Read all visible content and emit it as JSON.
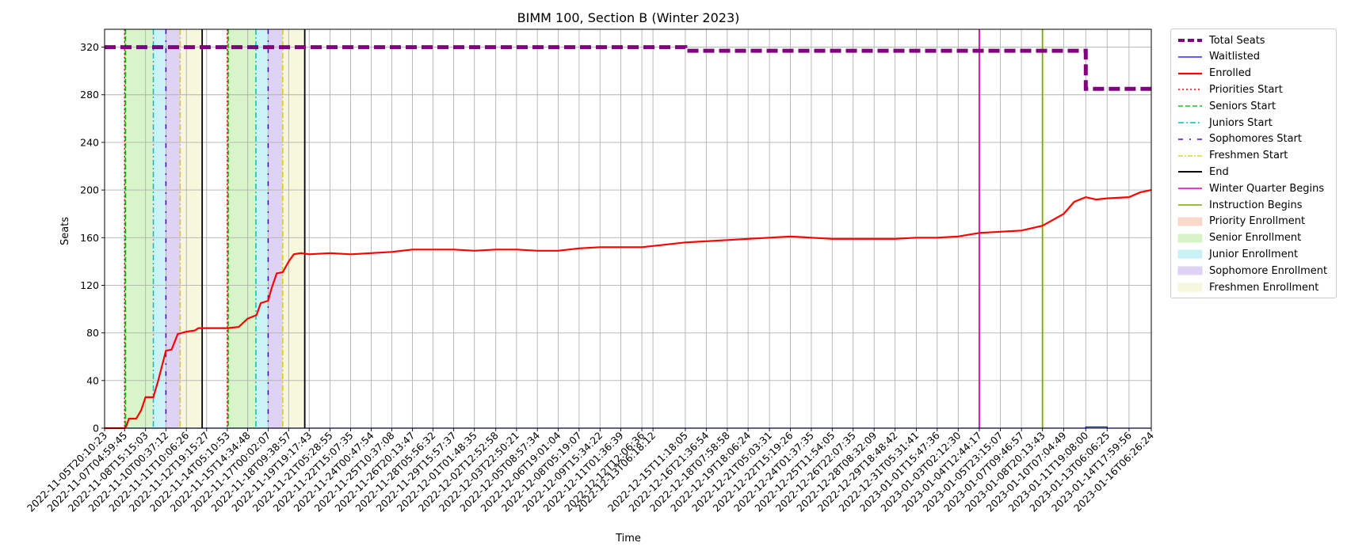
{
  "chart_data": {
    "type": "line",
    "title": "BIMM 100, Section B (Winter 2023)",
    "xlabel": "Time",
    "ylabel": "Seats",
    "ylim": [
      0,
      335
    ],
    "yticks": [
      0,
      40,
      80,
      120,
      160,
      200,
      240,
      280,
      320
    ],
    "grid": true,
    "legend_position": "outside-right",
    "x_range": [
      "2022-11-05T20:10:23",
      "2023-01-16T06:26:24"
    ],
    "x_tick_labels": [
      "2022-11-05T20:10:23",
      "2022-11-07T04:59:45",
      "2022-11-08T15:15:03",
      "2022-11-10T00:37:12",
      "2022-11-11T10:06:26",
      "2022-11-12T19:15:27",
      "2022-11-14T05:10:53",
      "2022-11-15T14:34:48",
      "2022-11-17T00:02:07",
      "2022-11-18T09:38:57",
      "2022-11-19T19:17:43",
      "2022-11-21T05:28:55",
      "2022-11-22T15:07:35",
      "2022-11-24T00:47:54",
      "2022-11-25T10:37:08",
      "2022-11-26T20:13:47",
      "2022-11-28T05:56:32",
      "2022-11-29T15:57:37",
      "2022-12-01T01:48:35",
      "2022-12-02T12:52:58",
      "2022-12-03T22:50:21",
      "2022-12-05T08:57:34",
      "2022-12-06T19:01:04",
      "2022-12-08T05:19:07",
      "2022-12-09T15:34:22",
      "2022-12-11T01:36:39",
      "2022-12-12T12:06:36",
      "2022-12-13T06:18:12",
      "2022-12-15T11:18:05",
      "2022-12-16T21:36:54",
      "2022-12-18T07:58:58",
      "2022-12-19T18:06:24",
      "2022-12-21T05:03:31",
      "2022-12-22T15:19:26",
      "2022-12-24T01:37:35",
      "2022-12-25T11:54:05",
      "2022-12-26T22:07:35",
      "2022-12-28T08:32:09",
      "2022-12-29T18:48:42",
      "2022-12-31T05:31:41",
      "2023-01-01T15:47:36",
      "2023-01-03T02:12:30",
      "2023-01-04T12:44:17",
      "2023-01-05T23:15:07",
      "2023-01-07T09:46:57",
      "2023-01-08T20:13:43",
      "2023-01-10T07:04:49",
      "2023-01-11T19:08:00",
      "2023-01-13T06:06:25",
      "2023-01-14T17:59:56",
      "2023-01-16T06:26:24"
    ],
    "series": [
      {
        "name": "Total Seats",
        "color": "#800080",
        "style": "dashed-thick",
        "points": [
          [
            "2022-11-05T20:10:23",
            320
          ],
          [
            "2022-12-15T11:18:05",
            320
          ],
          [
            "2022-12-15T11:18:05",
            317
          ],
          [
            "2023-01-11T19:08:00",
            317
          ],
          [
            "2023-01-11T19:08:00",
            285
          ],
          [
            "2023-01-16T06:26:24",
            285
          ]
        ]
      },
      {
        "name": "Waitlisted",
        "color": "#0000ff",
        "style": "solid-thin",
        "points": [
          [
            "2022-11-05T20:10:23",
            0
          ],
          [
            "2023-01-11T19:08:00",
            0
          ],
          [
            "2023-01-11T19:08:00",
            1
          ],
          [
            "2023-01-13T06:06:25",
            1
          ],
          [
            "2023-01-13T06:06:25",
            0
          ],
          [
            "2023-01-16T06:26:24",
            0
          ]
        ]
      },
      {
        "name": "Enrolled",
        "color": "#ff0000",
        "style": "solid",
        "points": [
          [
            "2022-11-05T20:10:23",
            0
          ],
          [
            "2022-11-07T04:59:45",
            0
          ],
          [
            "2022-11-07T08:00:00",
            2
          ],
          [
            "2022-11-07T12:00:00",
            8
          ],
          [
            "2022-11-08T00:00:00",
            8
          ],
          [
            "2022-11-08T08:00:00",
            15
          ],
          [
            "2022-11-08T15:15:03",
            26
          ],
          [
            "2022-11-09T04:00:00",
            26
          ],
          [
            "2022-11-09T12:00:00",
            40
          ],
          [
            "2022-11-10T00:37:12",
            65
          ],
          [
            "2022-11-10T10:00:00",
            66
          ],
          [
            "2022-11-10T20:00:00",
            79
          ],
          [
            "2022-11-11T10:06:26",
            81
          ],
          [
            "2022-11-12T00:00:00",
            82
          ],
          [
            "2022-11-12T06:00:00",
            84
          ],
          [
            "2022-11-13T00:00:00",
            84
          ],
          [
            "2022-11-14T05:10:53",
            84
          ],
          [
            "2022-11-15T00:00:00",
            85
          ],
          [
            "2022-11-15T14:34:48",
            92
          ],
          [
            "2022-11-16T05:00:00",
            95
          ],
          [
            "2022-11-16T12:00:00",
            105
          ],
          [
            "2022-11-17T00:02:07",
            107
          ],
          [
            "2022-11-17T06:00:00",
            118
          ],
          [
            "2022-11-17T14:00:00",
            130
          ],
          [
            "2022-11-18T00:00:00",
            131
          ],
          [
            "2022-11-18T09:38:57",
            140
          ],
          [
            "2022-11-18T18:00:00",
            146
          ],
          [
            "2022-11-19T06:00:00",
            147
          ],
          [
            "2022-11-19T19:17:43",
            146
          ],
          [
            "2022-11-21T05:28:55",
            147
          ],
          [
            "2022-11-22T15:07:35",
            146
          ],
          [
            "2022-11-24T00:47:54",
            147
          ],
          [
            "2022-11-25T10:37:08",
            148
          ],
          [
            "2022-11-26T20:13:47",
            150
          ],
          [
            "2022-11-28T05:56:32",
            150
          ],
          [
            "2022-11-29T15:57:37",
            150
          ],
          [
            "2022-12-01T01:48:35",
            149
          ],
          [
            "2022-12-02T12:52:58",
            150
          ],
          [
            "2022-12-03T22:50:21",
            150
          ],
          [
            "2022-12-05T08:57:34",
            149
          ],
          [
            "2022-12-06T19:01:04",
            149
          ],
          [
            "2022-12-08T05:19:07",
            151
          ],
          [
            "2022-12-09T15:34:22",
            152
          ],
          [
            "2022-12-11T01:36:39",
            152
          ],
          [
            "2022-12-12T12:06:36",
            152
          ],
          [
            "2022-12-13T06:18:12",
            153
          ],
          [
            "2022-12-15T11:18:05",
            156
          ],
          [
            "2022-12-16T21:36:54",
            157
          ],
          [
            "2022-12-18T07:58:58",
            158
          ],
          [
            "2022-12-19T18:06:24",
            159
          ],
          [
            "2022-12-21T05:03:31",
            160
          ],
          [
            "2022-12-22T15:19:26",
            161
          ],
          [
            "2022-12-24T01:37:35",
            160
          ],
          [
            "2022-12-25T11:54:05",
            159
          ],
          [
            "2022-12-26T22:07:35",
            159
          ],
          [
            "2022-12-28T08:32:09",
            159
          ],
          [
            "2022-12-29T18:48:42",
            159
          ],
          [
            "2022-12-31T05:31:41",
            160
          ],
          [
            "2023-01-01T15:47:36",
            160
          ],
          [
            "2023-01-03T02:12:30",
            161
          ],
          [
            "2023-01-04T12:44:17",
            164
          ],
          [
            "2023-01-05T23:15:07",
            165
          ],
          [
            "2023-01-07T09:46:57",
            166
          ],
          [
            "2023-01-08T20:13:43",
            170
          ],
          [
            "2023-01-10T07:04:49",
            180
          ],
          [
            "2023-01-11T00:00:00",
            190
          ],
          [
            "2023-01-11T19:08:00",
            194
          ],
          [
            "2023-01-12T12:00:00",
            192
          ],
          [
            "2023-01-13T06:06:25",
            193
          ],
          [
            "2023-01-14T17:59:56",
            194
          ],
          [
            "2023-01-15T12:00:00",
            198
          ],
          [
            "2023-01-16T06:26:24",
            200
          ]
        ]
      }
    ],
    "markers": [
      {
        "name": "Priorities Start",
        "color": "#ff0000",
        "style": "dotted",
        "times": [
          "2022-11-07T04:59:45",
          "2022-11-14T05:10:53"
        ]
      },
      {
        "name": "Seniors Start",
        "color": "#00bb00",
        "style": "dashed",
        "times": [
          "2022-11-07T06:30:00",
          "2022-11-14T06:40:00"
        ]
      },
      {
        "name": "Juniors Start",
        "color": "#00bfbf",
        "style": "dashdot",
        "times": [
          "2022-11-09T04:00:00",
          "2022-11-16T04:00:00"
        ]
      },
      {
        "name": "Sophomores Start",
        "color": "#5500cc",
        "style": "dashdot-sparse",
        "times": [
          "2022-11-10T00:37:12",
          "2022-11-17T00:02:07"
        ]
      },
      {
        "name": "Freshmen Start",
        "color": "#ddcc00",
        "style": "dashdot",
        "times": [
          "2022-11-11T00:00:00",
          "2022-11-18T00:00:00"
        ]
      },
      {
        "name": "End",
        "color": "#000000",
        "style": "solid",
        "times": [
          "2022-11-12T12:00:00",
          "2022-11-19T12:00:00"
        ]
      },
      {
        "name": "Winter Quarter Begins",
        "color": "#dd00aa",
        "style": "solid",
        "times": [
          "2023-01-04T12:44:17"
        ]
      },
      {
        "name": "Instruction Begins",
        "color": "#77aa00",
        "style": "solid",
        "times": [
          "2023-01-08T20:13:43"
        ]
      }
    ],
    "shaded_periods": [
      {
        "name": "Priority Enrollment",
        "color": "#f4c0a8",
        "ranges": [
          [
            "2022-11-07T04:59:45",
            "2022-11-07T06:30:00"
          ],
          [
            "2022-11-14T05:10:53",
            "2022-11-14T06:40:00"
          ]
        ]
      },
      {
        "name": "Senior Enrollment",
        "color": "#bdeea4",
        "ranges": [
          [
            "2022-11-07T06:30:00",
            "2022-11-09T04:00:00"
          ],
          [
            "2022-11-14T06:40:00",
            "2022-11-16T04:00:00"
          ]
        ]
      },
      {
        "name": "Junior Enrollment",
        "color": "#a8e9ef",
        "ranges": [
          [
            "2022-11-09T04:00:00",
            "2022-11-10T00:37:12"
          ],
          [
            "2022-11-16T04:00:00",
            "2022-11-17T00:02:07"
          ]
        ]
      },
      {
        "name": "Sophomore Enrollment",
        "color": "#c9b6ee",
        "ranges": [
          [
            "2022-11-10T00:37:12",
            "2022-11-11T00:00:00"
          ],
          [
            "2022-11-17T00:02:07",
            "2022-11-18T00:00:00"
          ]
        ]
      },
      {
        "name": "Freshmen Enrollment",
        "color": "#f1f2c4",
        "ranges": [
          [
            "2022-11-11T00:00:00",
            "2022-11-12T12:00:00"
          ],
          [
            "2022-11-18T00:00:00",
            "2022-11-19T12:00:00"
          ]
        ]
      }
    ]
  },
  "legend": {
    "items": [
      {
        "label": "Total Seats",
        "kind": "line",
        "color": "#800080",
        "dash": "8,4",
        "width": 4
      },
      {
        "label": "Waitlisted",
        "kind": "line",
        "color": "#0000ff",
        "dash": "",
        "width": 1.2
      },
      {
        "label": "Enrolled",
        "kind": "line",
        "color": "#ff0000",
        "dash": "",
        "width": 2.2
      },
      {
        "label": "Priorities Start",
        "kind": "line",
        "color": "#ff0000",
        "dash": "2,3",
        "width": 1.4
      },
      {
        "label": "Seniors Start",
        "kind": "line",
        "color": "#22bb22",
        "dash": "6,3",
        "width": 1.4
      },
      {
        "label": "Juniors Start",
        "kind": "line",
        "color": "#00bfbf",
        "dash": "7,3,2,3",
        "width": 1.4
      },
      {
        "label": "Sophomores Start",
        "kind": "line",
        "color": "#5500cc",
        "dash": "6,8,2,8",
        "width": 1.6
      },
      {
        "label": "Freshmen Start",
        "kind": "line",
        "color": "#ddcc00",
        "dash": "6,2,2,2",
        "width": 1.2
      },
      {
        "label": "End",
        "kind": "line",
        "color": "#000000",
        "dash": "",
        "width": 2
      },
      {
        "label": "Winter Quarter Begins",
        "kind": "line",
        "color": "#dd00aa",
        "dash": "",
        "width": 1.6
      },
      {
        "label": "Instruction Begins",
        "kind": "line",
        "color": "#77aa00",
        "dash": "",
        "width": 1.6
      },
      {
        "label": "Priority Enrollment",
        "kind": "patch",
        "color": "#f4c0a8"
      },
      {
        "label": "Senior Enrollment",
        "kind": "patch",
        "color": "#bdeea4"
      },
      {
        "label": "Junior Enrollment",
        "kind": "patch",
        "color": "#a8e9ef"
      },
      {
        "label": "Sophomore Enrollment",
        "kind": "patch",
        "color": "#c9b6ee"
      },
      {
        "label": "Freshmen Enrollment",
        "kind": "patch",
        "color": "#f1f2c4"
      }
    ]
  }
}
